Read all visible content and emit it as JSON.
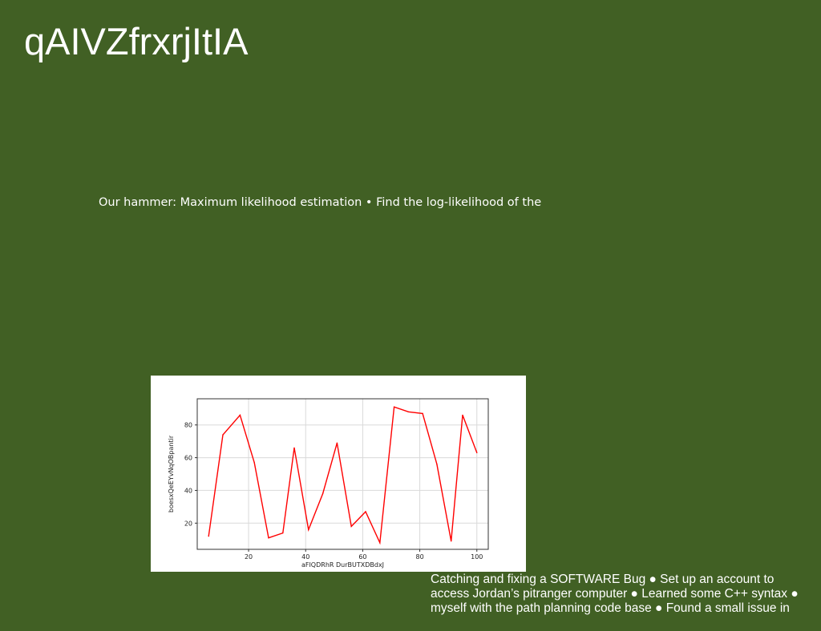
{
  "slide": {
    "title": "qAIVZfrxrjItIA",
    "subtitle": "Our hammer: Maximum likelihood estimation • Find the log-likelihood of the",
    "notes": [
      "Catching and fixing a SOFTWARE Bug ● Set up an account to",
      "access Jordan’s pitranger computer ● Learned some C++ syntax ●",
      "myself with the path planning code base ● Found a small issue in"
    ]
  },
  "colors": {
    "background": "#416024",
    "line": "#ff0000",
    "grid": "#d9d9d9",
    "axes": "#333333"
  },
  "chart_data": {
    "type": "line",
    "title": "",
    "xlabel": "aFIQDRhR DurBUTXDBdxJ",
    "ylabel": "boesxQeEYvNqOBpantir",
    "xlim": [
      2,
      104
    ],
    "ylim": [
      4,
      96
    ],
    "xticks": [
      20,
      40,
      60,
      80,
      100
    ],
    "yticks": [
      20,
      40,
      60,
      80
    ],
    "grid": true,
    "x": [
      6,
      11,
      17,
      22,
      27,
      32,
      36,
      41,
      46,
      51,
      56,
      61,
      66,
      71,
      76,
      81,
      86,
      91,
      95,
      100
    ],
    "y": [
      12,
      74,
      86,
      57,
      11,
      14,
      66,
      16,
      38,
      69,
      18,
      27,
      8,
      91,
      88,
      87,
      56,
      9,
      86,
      63
    ]
  }
}
